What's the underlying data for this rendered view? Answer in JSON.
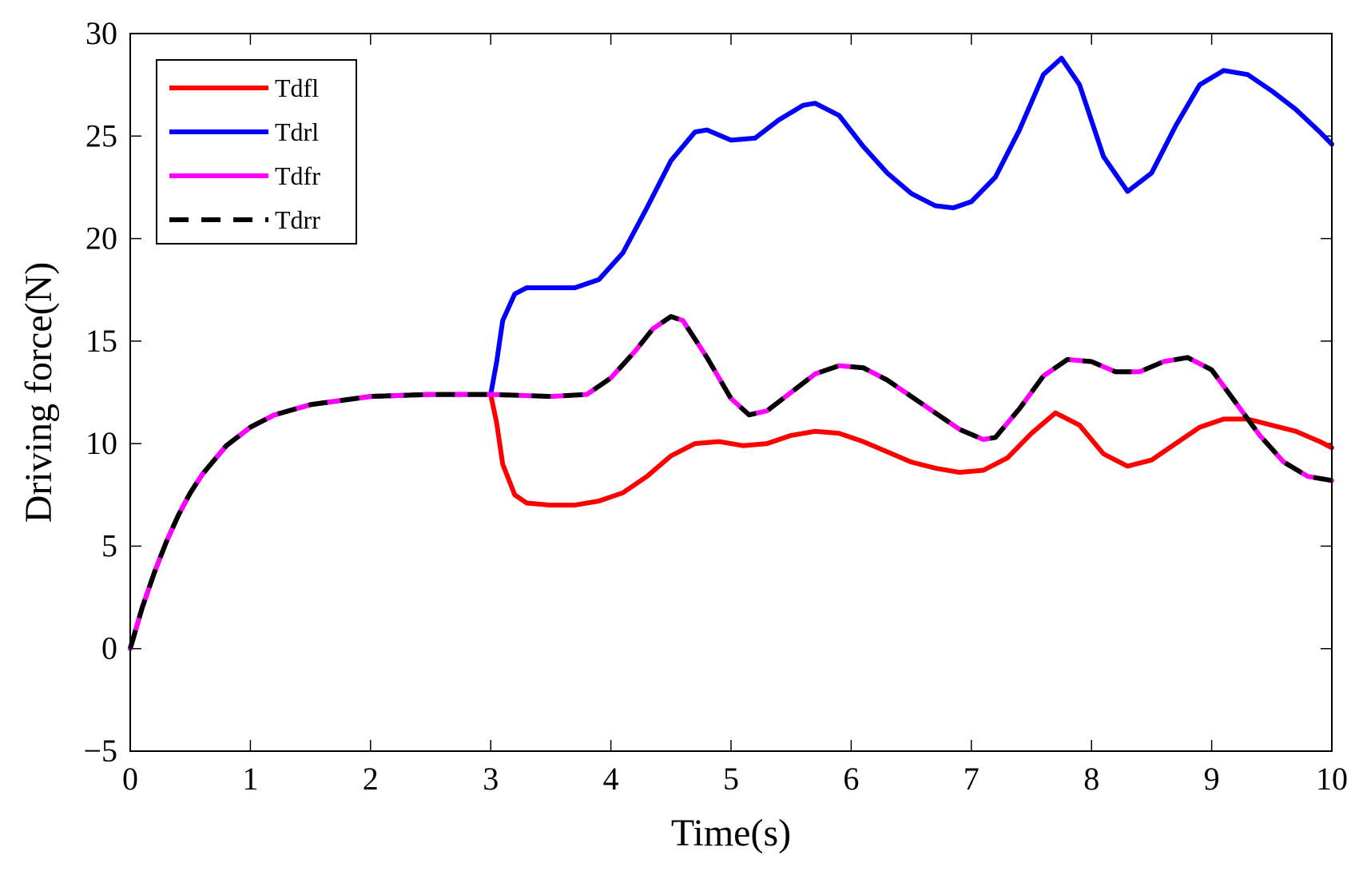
{
  "chart_data": {
    "type": "line",
    "title": "",
    "xlabel": "Time(s)",
    "ylabel": "Driving force(N)",
    "xlim": [
      0,
      10
    ],
    "ylim": [
      -5,
      30
    ],
    "x_ticks": [
      "0",
      "1",
      "2",
      "3",
      "4",
      "5",
      "6",
      "7",
      "8",
      "9",
      "10"
    ],
    "y_ticks": [
      "-5",
      "0",
      "5",
      "10",
      "15",
      "20",
      "25",
      "30"
    ],
    "legend_position": "top-left",
    "grid": false,
    "series": [
      {
        "name": "Tdfl",
        "color": "#ff0000",
        "style": "solid",
        "points": [
          [
            0,
            0
          ],
          [
            0.1,
            2
          ],
          [
            0.2,
            3.7
          ],
          [
            0.3,
            5.2
          ],
          [
            0.4,
            6.5
          ],
          [
            0.5,
            7.6
          ],
          [
            0.6,
            8.5
          ],
          [
            0.8,
            9.9
          ],
          [
            1.0,
            10.8
          ],
          [
            1.2,
            11.4
          ],
          [
            1.5,
            11.9
          ],
          [
            2.0,
            12.3
          ],
          [
            2.5,
            12.4
          ],
          [
            3.0,
            12.4
          ],
          [
            3.05,
            11
          ],
          [
            3.1,
            9
          ],
          [
            3.2,
            7.5
          ],
          [
            3.3,
            7.1
          ],
          [
            3.5,
            7.0
          ],
          [
            3.7,
            7.0
          ],
          [
            3.9,
            7.2
          ],
          [
            4.1,
            7.6
          ],
          [
            4.3,
            8.4
          ],
          [
            4.5,
            9.4
          ],
          [
            4.7,
            10.0
          ],
          [
            4.9,
            10.1
          ],
          [
            5.1,
            9.9
          ],
          [
            5.3,
            10.0
          ],
          [
            5.5,
            10.4
          ],
          [
            5.7,
            10.6
          ],
          [
            5.9,
            10.5
          ],
          [
            6.1,
            10.1
          ],
          [
            6.3,
            9.6
          ],
          [
            6.5,
            9.1
          ],
          [
            6.7,
            8.8
          ],
          [
            6.9,
            8.6
          ],
          [
            7.1,
            8.7
          ],
          [
            7.3,
            9.3
          ],
          [
            7.5,
            10.5
          ],
          [
            7.7,
            11.5
          ],
          [
            7.9,
            10.9
          ],
          [
            8.1,
            9.5
          ],
          [
            8.3,
            8.9
          ],
          [
            8.5,
            9.2
          ],
          [
            8.7,
            10.0
          ],
          [
            8.9,
            10.8
          ],
          [
            9.1,
            11.2
          ],
          [
            9.3,
            11.2
          ],
          [
            9.5,
            10.9
          ],
          [
            9.7,
            10.6
          ],
          [
            9.9,
            10.1
          ],
          [
            10.0,
            9.8
          ]
        ]
      },
      {
        "name": "Tdrl",
        "color": "#0000ff",
        "style": "solid",
        "points": [
          [
            0,
            0
          ],
          [
            0.1,
            2
          ],
          [
            0.2,
            3.7
          ],
          [
            0.3,
            5.2
          ],
          [
            0.4,
            6.5
          ],
          [
            0.5,
            7.6
          ],
          [
            0.6,
            8.5
          ],
          [
            0.8,
            9.9
          ],
          [
            1.0,
            10.8
          ],
          [
            1.2,
            11.4
          ],
          [
            1.5,
            11.9
          ],
          [
            2.0,
            12.3
          ],
          [
            2.5,
            12.4
          ],
          [
            3.0,
            12.4
          ],
          [
            3.05,
            14
          ],
          [
            3.1,
            16
          ],
          [
            3.2,
            17.3
          ],
          [
            3.3,
            17.6
          ],
          [
            3.5,
            17.6
          ],
          [
            3.7,
            17.6
          ],
          [
            3.9,
            18.0
          ],
          [
            4.1,
            19.3
          ],
          [
            4.3,
            21.5
          ],
          [
            4.5,
            23.8
          ],
          [
            4.7,
            25.2
          ],
          [
            4.8,
            25.3
          ],
          [
            5.0,
            24.8
          ],
          [
            5.2,
            24.9
          ],
          [
            5.4,
            25.8
          ],
          [
            5.6,
            26.5
          ],
          [
            5.7,
            26.6
          ],
          [
            5.9,
            26.0
          ],
          [
            6.1,
            24.5
          ],
          [
            6.3,
            23.2
          ],
          [
            6.5,
            22.2
          ],
          [
            6.7,
            21.6
          ],
          [
            6.85,
            21.5
          ],
          [
            7.0,
            21.8
          ],
          [
            7.2,
            23.0
          ],
          [
            7.4,
            25.3
          ],
          [
            7.6,
            28.0
          ],
          [
            7.75,
            28.8
          ],
          [
            7.9,
            27.5
          ],
          [
            8.1,
            24.0
          ],
          [
            8.3,
            22.3
          ],
          [
            8.5,
            23.2
          ],
          [
            8.7,
            25.5
          ],
          [
            8.9,
            27.5
          ],
          [
            9.1,
            28.2
          ],
          [
            9.3,
            28.0
          ],
          [
            9.5,
            27.2
          ],
          [
            9.7,
            26.3
          ],
          [
            9.9,
            25.2
          ],
          [
            10.0,
            24.6
          ]
        ]
      },
      {
        "name": "Tdfr",
        "color": "#ff00ff",
        "style": "solid",
        "points": [
          [
            0,
            0
          ],
          [
            0.1,
            2
          ],
          [
            0.2,
            3.7
          ],
          [
            0.3,
            5.2
          ],
          [
            0.4,
            6.5
          ],
          [
            0.5,
            7.6
          ],
          [
            0.6,
            8.5
          ],
          [
            0.8,
            9.9
          ],
          [
            1.0,
            10.8
          ],
          [
            1.2,
            11.4
          ],
          [
            1.5,
            11.9
          ],
          [
            2.0,
            12.3
          ],
          [
            2.5,
            12.4
          ],
          [
            3.0,
            12.4
          ],
          [
            3.5,
            12.3
          ],
          [
            3.8,
            12.4
          ],
          [
            4.0,
            13.2
          ],
          [
            4.2,
            14.5
          ],
          [
            4.35,
            15.6
          ],
          [
            4.5,
            16.2
          ],
          [
            4.6,
            16.0
          ],
          [
            4.8,
            14.2
          ],
          [
            5.0,
            12.2
          ],
          [
            5.15,
            11.4
          ],
          [
            5.3,
            11.6
          ],
          [
            5.5,
            12.5
          ],
          [
            5.7,
            13.4
          ],
          [
            5.9,
            13.8
          ],
          [
            6.1,
            13.7
          ],
          [
            6.3,
            13.1
          ],
          [
            6.5,
            12.3
          ],
          [
            6.7,
            11.5
          ],
          [
            6.9,
            10.7
          ],
          [
            7.1,
            10.2
          ],
          [
            7.2,
            10.3
          ],
          [
            7.4,
            11.7
          ],
          [
            7.6,
            13.3
          ],
          [
            7.8,
            14.1
          ],
          [
            8.0,
            14.0
          ],
          [
            8.2,
            13.5
          ],
          [
            8.4,
            13.5
          ],
          [
            8.6,
            14.0
          ],
          [
            8.8,
            14.2
          ],
          [
            9.0,
            13.6
          ],
          [
            9.2,
            12.0
          ],
          [
            9.4,
            10.4
          ],
          [
            9.6,
            9.1
          ],
          [
            9.8,
            8.4
          ],
          [
            10.0,
            8.2
          ]
        ]
      },
      {
        "name": "Tdrr",
        "color": "#000000",
        "style": "dashed",
        "points": [
          [
            0,
            0
          ],
          [
            0.1,
            2
          ],
          [
            0.2,
            3.7
          ],
          [
            0.3,
            5.2
          ],
          [
            0.4,
            6.5
          ],
          [
            0.5,
            7.6
          ],
          [
            0.6,
            8.5
          ],
          [
            0.8,
            9.9
          ],
          [
            1.0,
            10.8
          ],
          [
            1.2,
            11.4
          ],
          [
            1.5,
            11.9
          ],
          [
            2.0,
            12.3
          ],
          [
            2.5,
            12.4
          ],
          [
            3.0,
            12.4
          ],
          [
            3.5,
            12.3
          ],
          [
            3.8,
            12.4
          ],
          [
            4.0,
            13.2
          ],
          [
            4.2,
            14.5
          ],
          [
            4.35,
            15.6
          ],
          [
            4.5,
            16.2
          ],
          [
            4.6,
            16.0
          ],
          [
            4.8,
            14.2
          ],
          [
            5.0,
            12.2
          ],
          [
            5.15,
            11.4
          ],
          [
            5.3,
            11.6
          ],
          [
            5.5,
            12.5
          ],
          [
            5.7,
            13.4
          ],
          [
            5.9,
            13.8
          ],
          [
            6.1,
            13.7
          ],
          [
            6.3,
            13.1
          ],
          [
            6.5,
            12.3
          ],
          [
            6.7,
            11.5
          ],
          [
            6.9,
            10.7
          ],
          [
            7.1,
            10.2
          ],
          [
            7.2,
            10.3
          ],
          [
            7.4,
            11.7
          ],
          [
            7.6,
            13.3
          ],
          [
            7.8,
            14.1
          ],
          [
            8.0,
            14.0
          ],
          [
            8.2,
            13.5
          ],
          [
            8.4,
            13.5
          ],
          [
            8.6,
            14.0
          ],
          [
            8.8,
            14.2
          ],
          [
            9.0,
            13.6
          ],
          [
            9.2,
            12.0
          ],
          [
            9.4,
            10.4
          ],
          [
            9.6,
            9.1
          ],
          [
            9.8,
            8.4
          ],
          [
            10.0,
            8.2
          ]
        ]
      }
    ]
  }
}
